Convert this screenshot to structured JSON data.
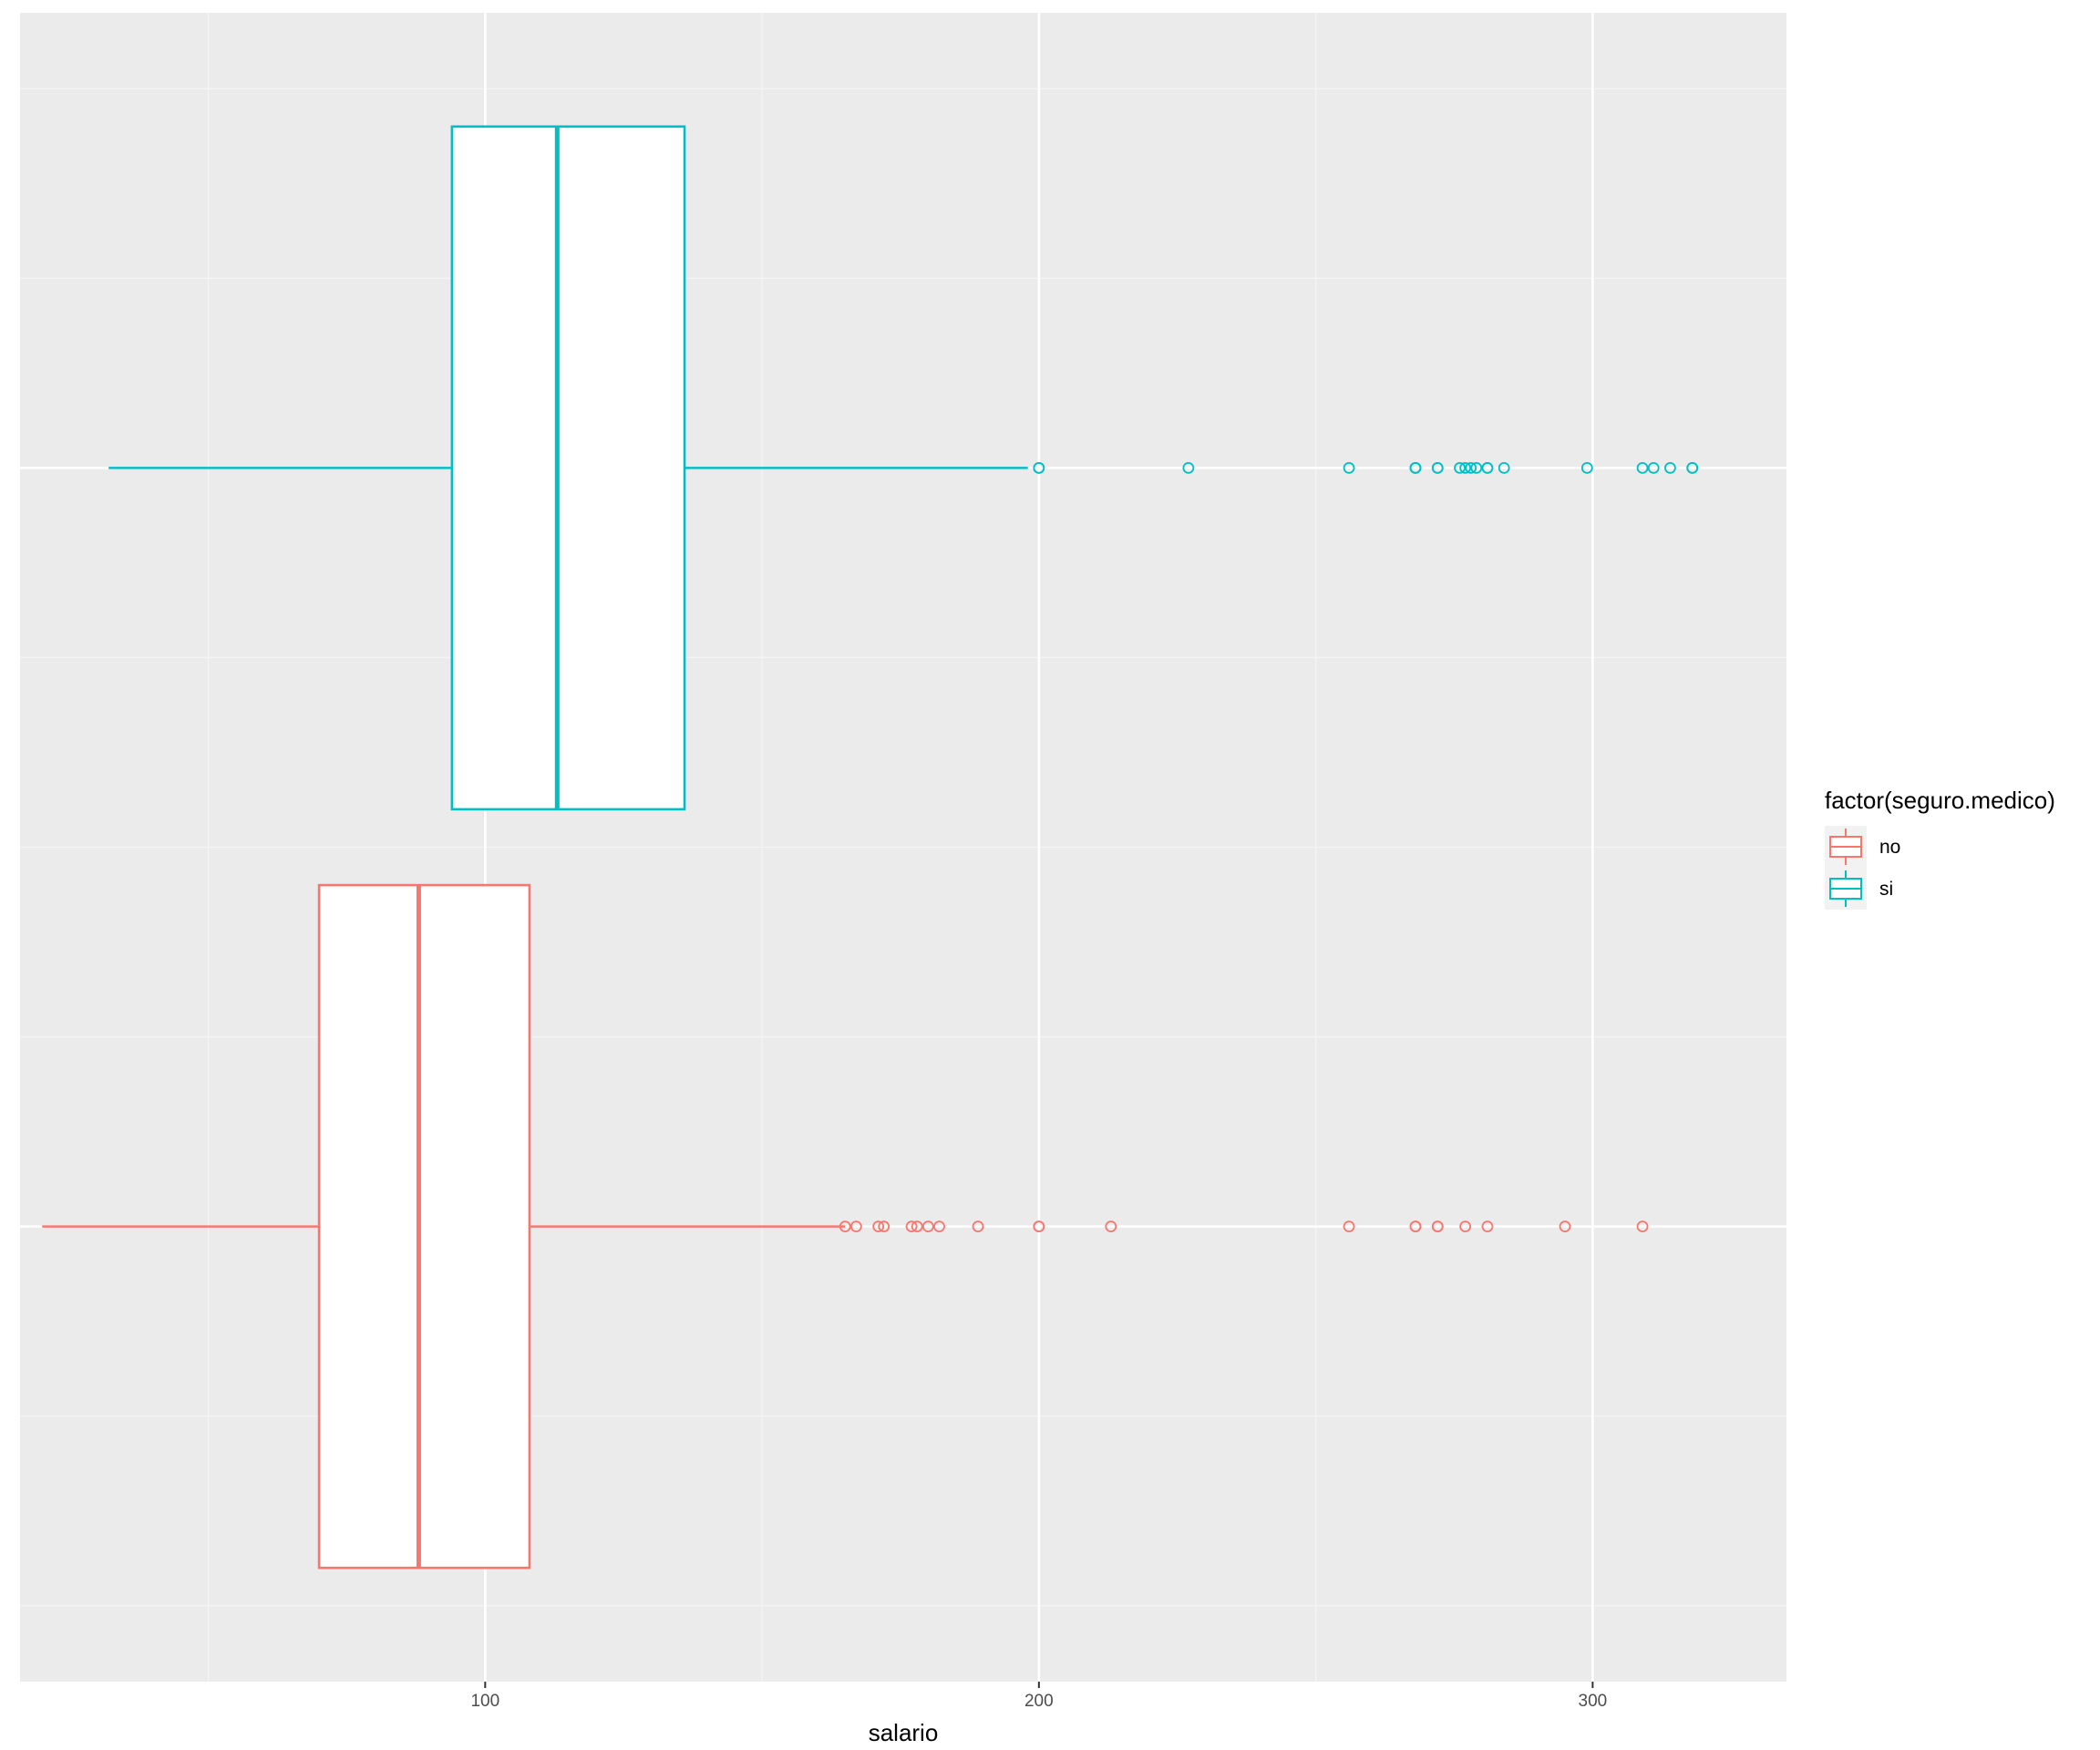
{
  "chart_data": {
    "type": "boxplot",
    "orientation": "horizontal",
    "title": "",
    "xlabel": "salario",
    "ylabel": "",
    "xlim": [
      16,
      335
    ],
    "x_ticks": [
      100,
      200,
      300
    ],
    "x_tick_labels": [
      "100",
      "200",
      "300"
    ],
    "x_minor_ticks": [
      50,
      150,
      250
    ],
    "y_ticks_shown": false,
    "grid": true,
    "legend": {
      "title": "factor(seguro.medico)",
      "position": "right",
      "entries": [
        "no",
        "si"
      ]
    },
    "series": [
      {
        "name": "no",
        "color": "#F8766D",
        "stats": {
          "whisker_low": 20,
          "q1": 70,
          "median": 88,
          "q3": 108,
          "whisker_high": 165
        },
        "outliers": [
          165,
          167,
          171,
          172,
          177,
          178,
          180,
          182,
          189,
          200,
          200,
          213,
          256,
          268,
          268,
          272,
          272,
          277,
          281,
          295,
          309
        ]
      },
      {
        "name": "si",
        "color": "#00BFC4",
        "stats": {
          "whisker_low": 32,
          "q1": 94,
          "median": 113,
          "q3": 136,
          "whisker_high": 198
        },
        "outliers": [
          200,
          200,
          227,
          256,
          268,
          268,
          268,
          272,
          272,
          276,
          277,
          278,
          279,
          281,
          281,
          284,
          299,
          309,
          311,
          314,
          318,
          318
        ]
      }
    ]
  }
}
